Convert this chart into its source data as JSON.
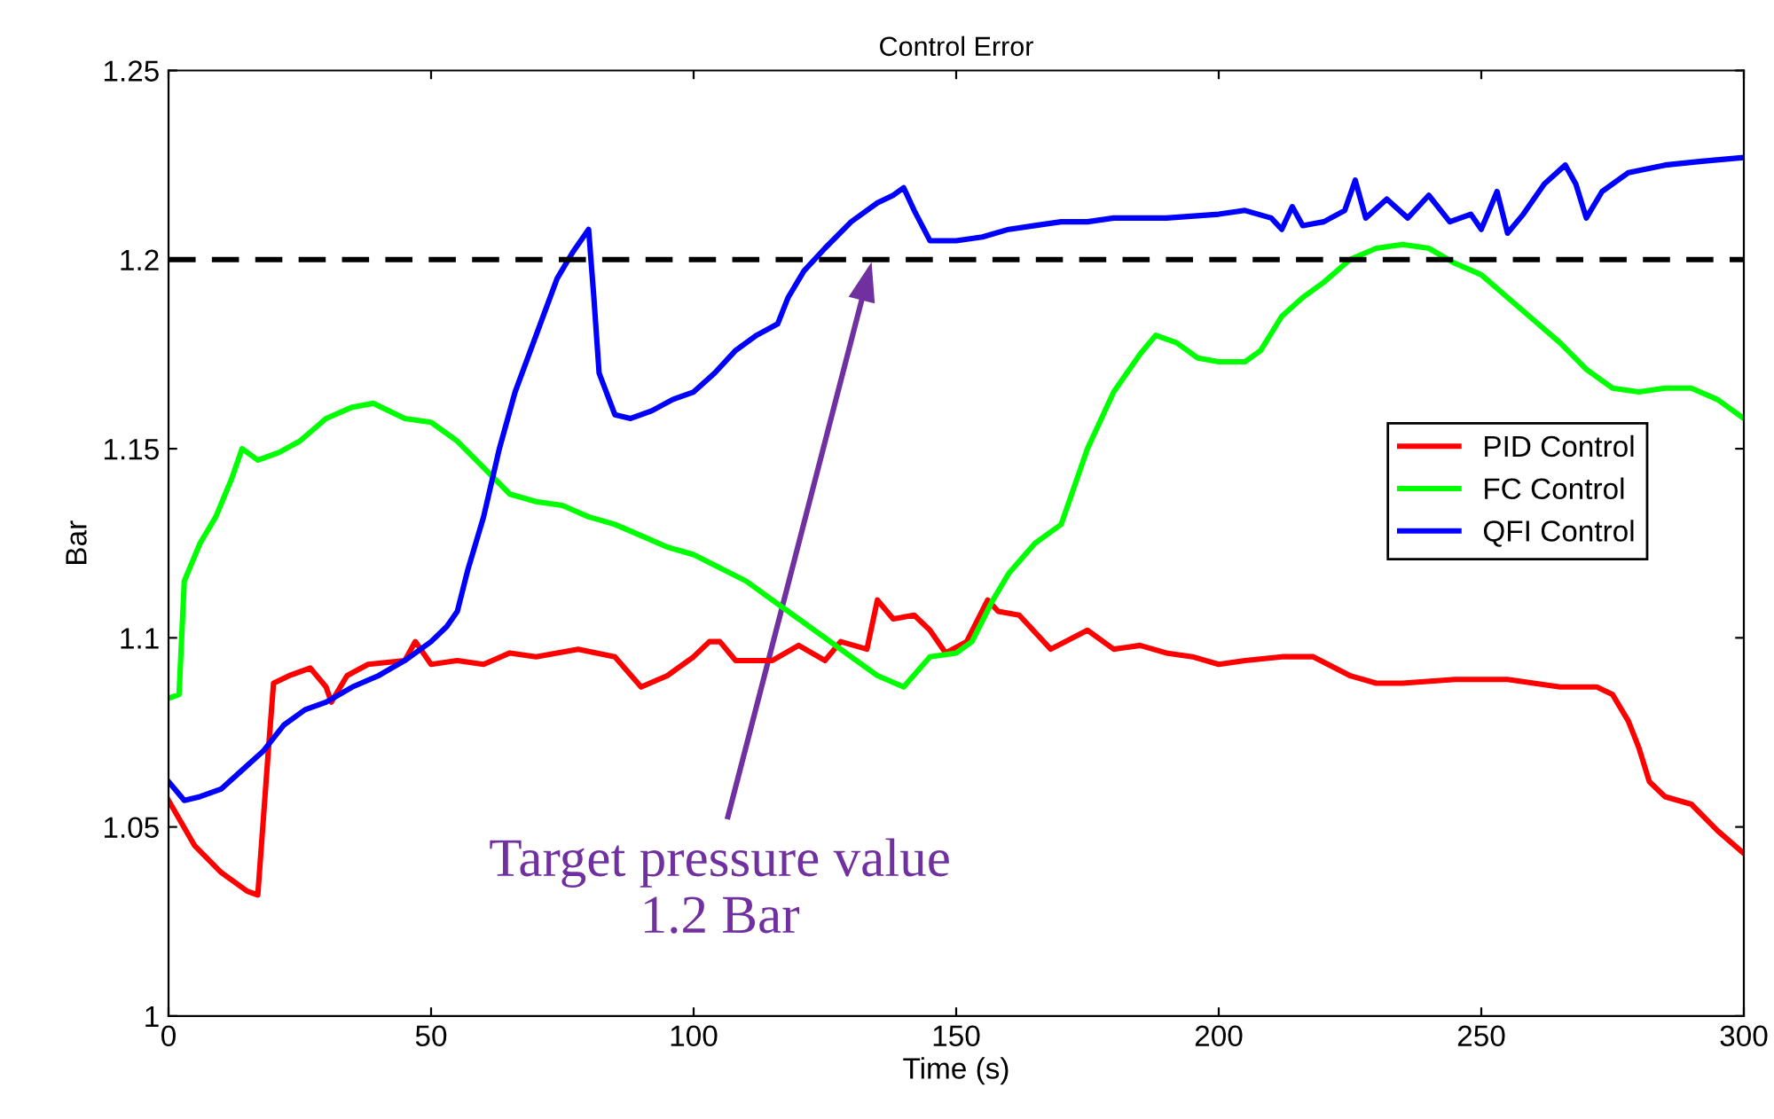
{
  "chart_data": {
    "type": "line",
    "title": "Control Error",
    "xlabel": "Time (s)",
    "ylabel": "Bar",
    "xlim": [
      0,
      300
    ],
    "xticks": [
      0,
      50,
      100,
      150,
      200,
      250,
      300
    ],
    "ylim": [
      1,
      1.25
    ],
    "yticks": [
      1,
      1.05,
      1.1,
      1.15,
      1.2,
      1.25
    ],
    "grid": false,
    "legend": "right",
    "line_style": "solid",
    "marker": "none",
    "series": [
      {
        "name": "PID Control",
        "color": "#ff0000",
        "x": [
          0,
          5,
          10,
          15,
          17,
          19,
          20,
          23,
          27,
          30,
          31,
          34,
          38,
          45,
          47,
          50,
          55,
          60,
          65,
          70,
          78,
          85,
          90,
          95,
          100,
          103,
          105,
          108,
          115,
          120,
          125,
          128,
          133,
          135,
          138,
          142,
          145,
          148,
          152,
          156,
          158,
          162,
          168,
          175,
          180,
          185,
          190,
          195,
          200,
          205,
          212,
          218,
          225,
          230,
          235,
          245,
          255,
          265,
          272,
          275,
          278,
          280,
          282,
          285,
          290,
          295,
          300
        ],
        "values": [
          1.057,
          1.045,
          1.038,
          1.033,
          1.032,
          1.07,
          1.088,
          1.09,
          1.092,
          1.087,
          1.083,
          1.09,
          1.093,
          1.094,
          1.099,
          1.093,
          1.094,
          1.093,
          1.096,
          1.095,
          1.097,
          1.095,
          1.087,
          1.09,
          1.095,
          1.099,
          1.099,
          1.094,
          1.094,
          1.098,
          1.094,
          1.099,
          1.097,
          1.11,
          1.105,
          1.106,
          1.102,
          1.096,
          1.099,
          1.11,
          1.107,
          1.106,
          1.097,
          1.102,
          1.097,
          1.098,
          1.096,
          1.095,
          1.093,
          1.094,
          1.095,
          1.095,
          1.09,
          1.088,
          1.088,
          1.089,
          1.089,
          1.087,
          1.087,
          1.085,
          1.078,
          1.071,
          1.062,
          1.058,
          1.056,
          1.049,
          1.043
        ]
      },
      {
        "name": "FC Control",
        "color": "#00ff00",
        "x": [
          0,
          2,
          3,
          6,
          9,
          12,
          14,
          17,
          21,
          25,
          30,
          35,
          39,
          45,
          50,
          55,
          60,
          65,
          70,
          75,
          80,
          85,
          90,
          95,
          100,
          110,
          115,
          120,
          125,
          130,
          135,
          140,
          145,
          150,
          153,
          157,
          160,
          165,
          170,
          175,
          180,
          185,
          188,
          192,
          196,
          200,
          205,
          208,
          212,
          216,
          220,
          225,
          230,
          235,
          240,
          245,
          250,
          255,
          260,
          265,
          270,
          275,
          280,
          285,
          290,
          295,
          300
        ],
        "values": [
          1.084,
          1.085,
          1.115,
          1.125,
          1.132,
          1.142,
          1.15,
          1.147,
          1.149,
          1.152,
          1.158,
          1.161,
          1.162,
          1.158,
          1.157,
          1.152,
          1.145,
          1.138,
          1.136,
          1.135,
          1.132,
          1.13,
          1.127,
          1.124,
          1.122,
          1.115,
          1.11,
          1.105,
          1.1,
          1.095,
          1.09,
          1.087,
          1.095,
          1.096,
          1.099,
          1.11,
          1.117,
          1.125,
          1.13,
          1.15,
          1.165,
          1.175,
          1.18,
          1.178,
          1.174,
          1.173,
          1.173,
          1.176,
          1.185,
          1.19,
          1.194,
          1.2,
          1.203,
          1.204,
          1.203,
          1.199,
          1.196,
          1.19,
          1.184,
          1.178,
          1.171,
          1.166,
          1.165,
          1.166,
          1.166,
          1.163,
          1.158
        ]
      },
      {
        "name": "QFI Control",
        "color": "#0000ff",
        "x": [
          0,
          3,
          6,
          10,
          14,
          18,
          22,
          26,
          30,
          35,
          40,
          45,
          50,
          53,
          55,
          57,
          60,
          63,
          66,
          70,
          74,
          77,
          80,
          81,
          82,
          85,
          88,
          92,
          96,
          100,
          104,
          108,
          112,
          116,
          118,
          121,
          125,
          130,
          135,
          138,
          140,
          142,
          145,
          150,
          155,
          160,
          165,
          170,
          175,
          180,
          190,
          200,
          205,
          210,
          212,
          214,
          216,
          220,
          224,
          226,
          228,
          232,
          236,
          240,
          244,
          248,
          250,
          253,
          255,
          258,
          262,
          266,
          268,
          270,
          273,
          278,
          285,
          292,
          300
        ],
        "values": [
          1.062,
          1.057,
          1.058,
          1.06,
          1.065,
          1.07,
          1.077,
          1.081,
          1.083,
          1.087,
          1.09,
          1.094,
          1.099,
          1.103,
          1.107,
          1.118,
          1.132,
          1.15,
          1.165,
          1.18,
          1.195,
          1.202,
          1.208,
          1.19,
          1.17,
          1.159,
          1.158,
          1.16,
          1.163,
          1.165,
          1.17,
          1.176,
          1.18,
          1.183,
          1.19,
          1.197,
          1.203,
          1.21,
          1.215,
          1.217,
          1.219,
          1.213,
          1.205,
          1.205,
          1.206,
          1.208,
          1.209,
          1.21,
          1.21,
          1.211,
          1.211,
          1.212,
          1.213,
          1.211,
          1.208,
          1.214,
          1.209,
          1.21,
          1.213,
          1.221,
          1.211,
          1.216,
          1.211,
          1.217,
          1.21,
          1.212,
          1.208,
          1.218,
          1.207,
          1.212,
          1.22,
          1.225,
          1.22,
          1.211,
          1.218,
          1.223,
          1.225,
          1.226,
          1.227
        ]
      }
    ],
    "ref_lines": [
      {
        "axis": "y",
        "value": 1.2,
        "color": "#000000",
        "line_style": "dashed"
      }
    ],
    "annotations": [
      "Target pressure value\n1.2 Bar"
    ]
  }
}
